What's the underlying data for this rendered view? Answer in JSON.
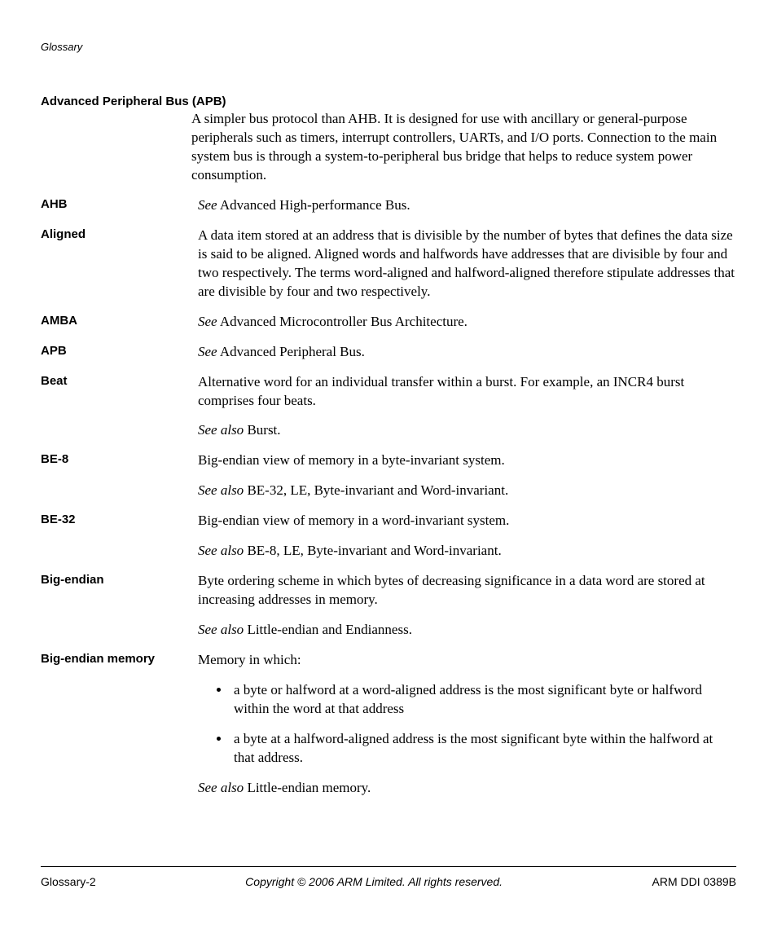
{
  "header": {
    "section": "Glossary"
  },
  "entries": [
    {
      "term": "Advanced Peripheral Bus (APB)",
      "full": true,
      "paragraphs": [
        {
          "segments": [
            {
              "text": "A simpler bus protocol than AHB. It is designed for use with ancillary or general-purpose peripherals such as timers, interrupt controllers, UARTs, and I/O ports. Connection to the main system bus is through a system-to-peripheral bus bridge that helps to reduce system power consumption."
            }
          ]
        }
      ]
    },
    {
      "term": "AHB",
      "paragraphs": [
        {
          "segments": [
            {
              "text": "See",
              "em": true
            },
            {
              "text": " Advanced High-performance Bus."
            }
          ]
        }
      ]
    },
    {
      "term": "Aligned",
      "paragraphs": [
        {
          "segments": [
            {
              "text": "A data item stored at an address that is divisible by the number of bytes that defines the data size is said to be aligned. Aligned words and halfwords have addresses that are divisible by four and two respectively. The terms word-aligned and halfword-aligned therefore stipulate addresses that are divisible by four and two respectively."
            }
          ]
        }
      ]
    },
    {
      "term": "AMBA",
      "paragraphs": [
        {
          "segments": [
            {
              "text": "See",
              "em": true
            },
            {
              "text": " Advanced Microcontroller Bus Architecture."
            }
          ]
        }
      ]
    },
    {
      "term": "APB",
      "paragraphs": [
        {
          "segments": [
            {
              "text": "See",
              "em": true
            },
            {
              "text": " Advanced Peripheral Bus."
            }
          ]
        }
      ]
    },
    {
      "term": "Beat",
      "paragraphs": [
        {
          "segments": [
            {
              "text": "Alternative word for an individual transfer within a burst. For example, an INCR4 burst comprises four beats."
            }
          ]
        },
        {
          "segments": [
            {
              "text": "See also",
              "em": true
            },
            {
              "text": " Burst."
            }
          ]
        }
      ]
    },
    {
      "term": "BE-8",
      "paragraphs": [
        {
          "segments": [
            {
              "text": "Big-endian view of memory in a byte-invariant system."
            }
          ]
        },
        {
          "segments": [
            {
              "text": "See also",
              "em": true
            },
            {
              "text": " BE-32, LE, Byte-invariant and Word-invariant."
            }
          ]
        }
      ]
    },
    {
      "term": "BE-32",
      "paragraphs": [
        {
          "segments": [
            {
              "text": "Big-endian view of memory in a word-invariant system."
            }
          ]
        },
        {
          "segments": [
            {
              "text": "See also",
              "em": true
            },
            {
              "text": " BE-8, LE, Byte-invariant and Word-invariant."
            }
          ]
        }
      ]
    },
    {
      "term": "Big-endian",
      "paragraphs": [
        {
          "segments": [
            {
              "text": "Byte ordering scheme in which bytes of decreasing significance in a data word are stored at increasing addresses in memory."
            }
          ]
        },
        {
          "segments": [
            {
              "text": "See also",
              "em": true
            },
            {
              "text": " Little-endian and Endianness."
            }
          ]
        }
      ]
    },
    {
      "term": "Big-endian memory",
      "paragraphs": [
        {
          "segments": [
            {
              "text": "Memory in which:"
            }
          ]
        },
        {
          "list": [
            "a byte or halfword at a word-aligned address is the most significant byte or halfword within the word at that address",
            "a byte at a halfword-aligned address is the most significant byte within the halfword at that address."
          ]
        },
        {
          "segments": [
            {
              "text": "See also",
              "em": true
            },
            {
              "text": " Little-endian memory."
            }
          ]
        }
      ]
    }
  ],
  "footer": {
    "left": "Glossary-2",
    "center": "Copyright © 2006 ARM Limited. All rights reserved.",
    "right": "ARM DDI 0389B"
  }
}
